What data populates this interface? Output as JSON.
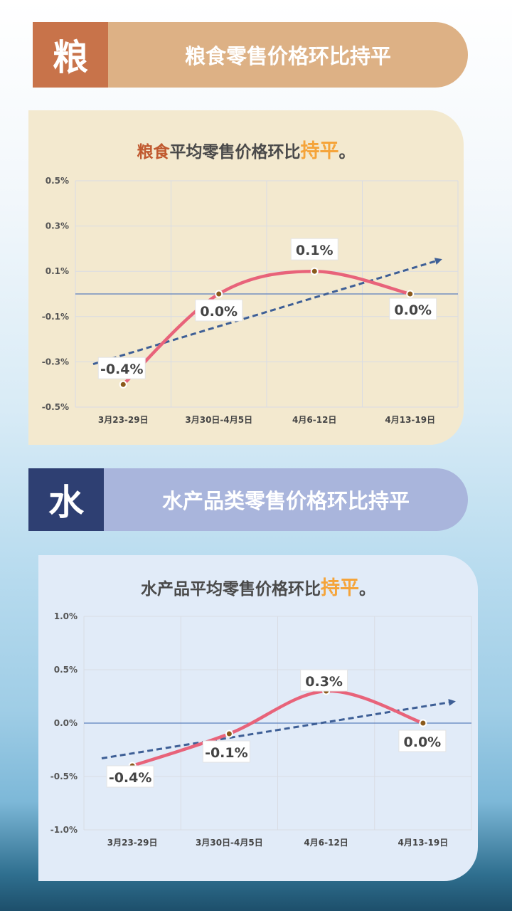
{
  "sections": [
    {
      "badge": "粮",
      "banner_title": "粮食零售价格环比持平",
      "chart_title": {
        "highlight": "粮食",
        "middle": "平均零售价格环比",
        "emphasis": "持平",
        "end": "。"
      },
      "colors": {
        "badge": "#c8734a",
        "banner": "#ddb185",
        "card": "#f3e9cf",
        "accent": "#c0592f"
      }
    },
    {
      "badge": "水",
      "banner_title": "水产品类零售价格环比持平",
      "chart_title": {
        "highlight": "",
        "middle": "水产品平均零售价格环比",
        "emphasis": "持平",
        "end": "。"
      },
      "colors": {
        "badge": "#2e3f72",
        "banner": "#a9b5dc",
        "card": "#e1ebf8",
        "accent": "#2e3f72"
      }
    }
  ],
  "chart_data": [
    {
      "type": "line",
      "categories": [
        "3月23-29日",
        "3月30日-4月5日",
        "4月6-12日",
        "4月13-19日"
      ],
      "series": [
        {
          "values": [
            -0.4,
            0.0,
            0.1,
            0.0
          ],
          "labels": [
            "-0.4%",
            "0.0%",
            "0.1%",
            "0.0%"
          ],
          "color": "#e8637a"
        }
      ],
      "trendline": [
        -0.31,
        0.15
      ],
      "yticks": [
        "0.5%",
        "0.3%",
        "0.1%",
        "-0.1%",
        "-0.3%",
        "-0.5%"
      ],
      "ylim": [
        -0.5,
        0.5
      ],
      "grid": true
    },
    {
      "type": "line",
      "categories": [
        "3月23-29日",
        "3月30日-4月5日",
        "4月6-12日",
        "4月13-19日"
      ],
      "series": [
        {
          "values": [
            -0.4,
            -0.1,
            0.3,
            0.0
          ],
          "labels": [
            "-0.4%",
            "-0.1%",
            "0.3%",
            "0.0%"
          ],
          "color": "#e8637a"
        }
      ],
      "trendline": [
        -0.33,
        0.2
      ],
      "yticks": [
        "1.0%",
        "0.5%",
        "0.0%",
        "-0.5%",
        "-1.0%"
      ],
      "ylim": [
        -1.0,
        1.0
      ],
      "grid": true
    }
  ]
}
